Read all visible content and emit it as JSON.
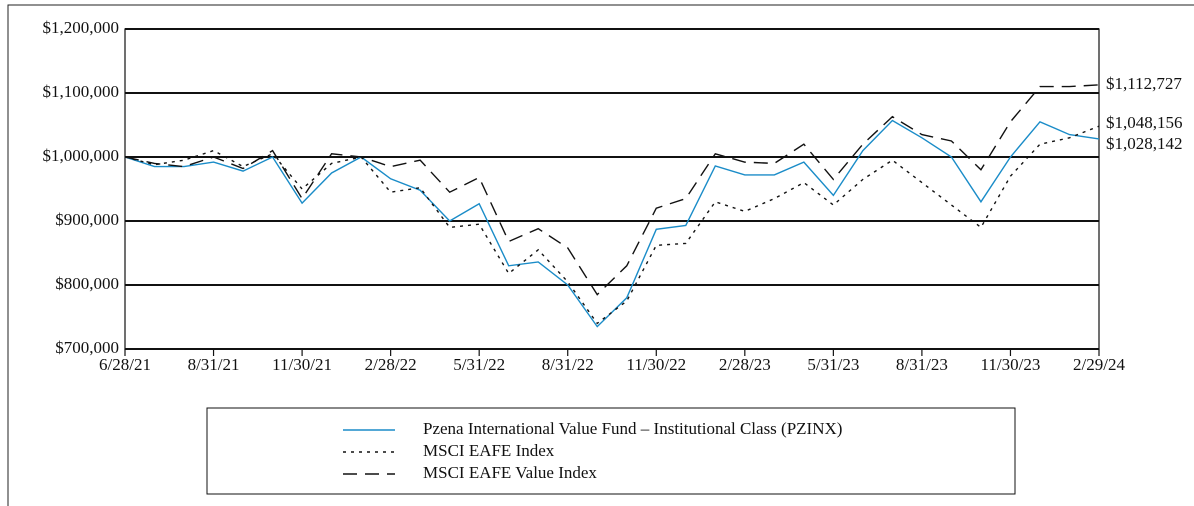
{
  "chart_data": {
    "type": "line",
    "categories": [
      "6/28/21",
      null,
      null,
      "8/31/21",
      null,
      null,
      "11/30/21",
      null,
      null,
      "2/28/22",
      null,
      null,
      "5/31/22",
      null,
      null,
      "8/31/22",
      null,
      null,
      "11/30/22",
      null,
      null,
      "2/28/23",
      null,
      null,
      "5/31/23",
      null,
      null,
      "8/31/23",
      null,
      null,
      "11/30/23",
      null,
      null,
      "2/29/24"
    ],
    "series": [
      {
        "name": "Pzena International Value Fund – Institutional Class (PZINX)",
        "color": "#1a8cc8",
        "dash": "solid",
        "values": [
          1000000,
          985000,
          985000,
          992000,
          978000,
          1000000,
          928000,
          975000,
          1000000,
          966000,
          948000,
          900000,
          927000,
          830000,
          836000,
          800000,
          735000,
          780000,
          887000,
          893000,
          986000,
          972000,
          972000,
          992000,
          940000,
          1010000,
          1057000,
          1030000,
          1000000,
          930000,
          1000000,
          1055000,
          1035000,
          1028142
        ],
        "end_label": "$1,028,142"
      },
      {
        "name": "MSCI EAFE Index",
        "color": "#111111",
        "dash": "dotted",
        "values": [
          1000000,
          988000,
          995000,
          1010000,
          985000,
          1005000,
          950000,
          990000,
          1000000,
          945000,
          952000,
          890000,
          895000,
          818000,
          855000,
          805000,
          740000,
          775000,
          862000,
          865000,
          930000,
          915000,
          935000,
          960000,
          925000,
          965000,
          995000,
          960000,
          925000,
          890000,
          970000,
          1020000,
          1030000,
          1048156
        ],
        "end_label": "$1,048,156"
      },
      {
        "name": "MSCI EAFE Value Index",
        "color": "#111111",
        "dash": "dashed",
        "values": [
          1000000,
          990000,
          985000,
          1000000,
          982000,
          1010000,
          935000,
          1005000,
          1000000,
          985000,
          995000,
          945000,
          968000,
          868000,
          888000,
          858000,
          785000,
          830000,
          920000,
          935000,
          1005000,
          992000,
          990000,
          1020000,
          965000,
          1020000,
          1063000,
          1035000,
          1025000,
          980000,
          1055000,
          1110000,
          1110000,
          1112727
        ],
        "end_label": "$1,112,727"
      }
    ],
    "ylim": [
      700000,
      1200000
    ],
    "yticks": [
      {
        "value": 700000,
        "label": "$700,000"
      },
      {
        "value": 800000,
        "label": "$800,000"
      },
      {
        "value": 900000,
        "label": "$900,000"
      },
      {
        "value": 1000000,
        "label": "$1,000,000"
      },
      {
        "value": 1100000,
        "label": "$1,100,000"
      },
      {
        "value": 1200000,
        "label": "$1,200,000"
      }
    ],
    "grid": true,
    "legend": "bottom"
  }
}
